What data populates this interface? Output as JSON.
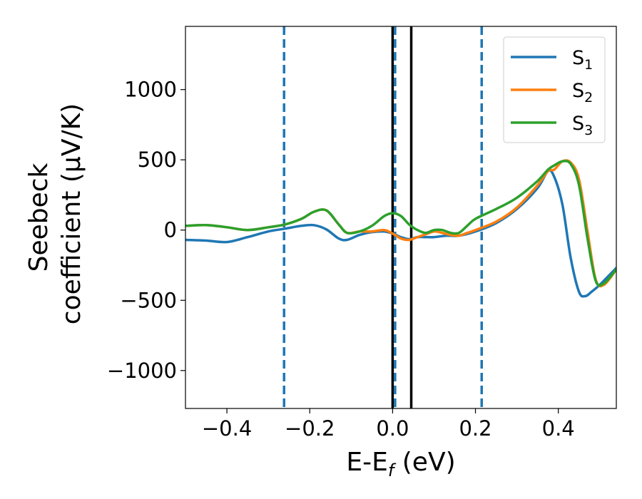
{
  "chart_data": {
    "type": "line",
    "xlabel": "E-E",
    "xlabel_sub": "f",
    "xlabel_unit": " (eV)",
    "ylabel_line1": "Seebeck",
    "ylabel_line2": "coefficient  (μV/K)",
    "xlim": [
      -0.5,
      0.54
    ],
    "ylim": [
      -1270,
      1450
    ],
    "xticks": [
      -0.4,
      -0.2,
      0.0,
      0.2,
      0.4
    ],
    "xtick_labels": [
      "−0.4",
      "−0.2",
      "0.0",
      "0.2",
      "0.4"
    ],
    "yticks": [
      -1000,
      -500,
      0,
      500,
      1000
    ],
    "ytick_labels": [
      "−1000",
      "−500",
      "0",
      "500",
      "1000"
    ],
    "grid": false,
    "legend_position": "top-right",
    "vlines": [
      {
        "x": -0.262,
        "style": "dashed",
        "color": "#1f77b4"
      },
      {
        "x": 0.0,
        "style": "solid",
        "color": "#000000"
      },
      {
        "x": 0.006,
        "style": "dashed",
        "color": "#1f77b4"
      },
      {
        "x": 0.045,
        "style": "solid",
        "color": "#000000"
      },
      {
        "x": 0.215,
        "style": "dashed",
        "color": "#1f77b4"
      }
    ],
    "series": [
      {
        "name": "S",
        "sub": "1",
        "color": "#1f77b4",
        "x": [
          -0.5,
          -0.45,
          -0.4,
          -0.35,
          -0.3,
          -0.26,
          -0.22,
          -0.19,
          -0.16,
          -0.13,
          -0.11,
          -0.08,
          -0.05,
          -0.02,
          0.0,
          0.02,
          0.04,
          0.06,
          0.08,
          0.1,
          0.13,
          0.16,
          0.2,
          0.25,
          0.3,
          0.35,
          0.375,
          0.39,
          0.41,
          0.43,
          0.45,
          0.465,
          0.48,
          0.5,
          0.52,
          0.54
        ],
        "y": [
          -70,
          -75,
          -85,
          -50,
          -10,
          10,
          30,
          35,
          5,
          -60,
          -70,
          -35,
          -15,
          -10,
          -25,
          -50,
          -65,
          -50,
          -50,
          -50,
          -40,
          -40,
          -10,
          50,
          150,
          300,
          420,
          380,
          180,
          -200,
          -440,
          -470,
          -440,
          -390,
          -330,
          -270
        ]
      },
      {
        "name": "S",
        "sub": "2",
        "color": "#ff7f0e",
        "x": [
          -0.5,
          -0.45,
          -0.4,
          -0.35,
          -0.3,
          -0.26,
          -0.22,
          -0.19,
          -0.16,
          -0.13,
          -0.11,
          -0.08,
          -0.05,
          -0.02,
          0.0,
          0.02,
          0.04,
          0.06,
          0.08,
          0.1,
          0.12,
          0.14,
          0.16,
          0.18,
          0.2,
          0.25,
          0.3,
          0.35,
          0.375,
          0.39,
          0.41,
          0.43,
          0.45,
          0.47,
          0.49,
          0.51,
          0.54
        ],
        "y": [
          30,
          35,
          20,
          0,
          20,
          40,
          80,
          130,
          140,
          40,
          -20,
          -10,
          -10,
          0,
          -25,
          -60,
          -70,
          -50,
          -30,
          -10,
          -20,
          -35,
          -40,
          -20,
          0,
          60,
          160,
          320,
          420,
          430,
          490,
          480,
          360,
          0,
          -350,
          -390,
          -280
        ]
      },
      {
        "name": "S",
        "sub": "3",
        "color": "#2ca02c",
        "x": [
          -0.5,
          -0.45,
          -0.4,
          -0.35,
          -0.3,
          -0.26,
          -0.22,
          -0.19,
          -0.16,
          -0.13,
          -0.11,
          -0.08,
          -0.05,
          -0.02,
          0.0,
          0.02,
          0.04,
          0.06,
          0.08,
          0.1,
          0.12,
          0.14,
          0.16,
          0.18,
          0.2,
          0.25,
          0.3,
          0.35,
          0.375,
          0.39,
          0.41,
          0.43,
          0.45,
          0.47,
          0.49,
          0.51,
          0.54
        ],
        "y": [
          30,
          35,
          20,
          0,
          20,
          40,
          80,
          130,
          140,
          40,
          -20,
          -10,
          30,
          100,
          120,
          100,
          40,
          0,
          -20,
          0,
          0,
          -20,
          -20,
          30,
          80,
          150,
          230,
          350,
          430,
          460,
          490,
          470,
          320,
          -50,
          -360,
          -380,
          -280
        ]
      }
    ]
  }
}
